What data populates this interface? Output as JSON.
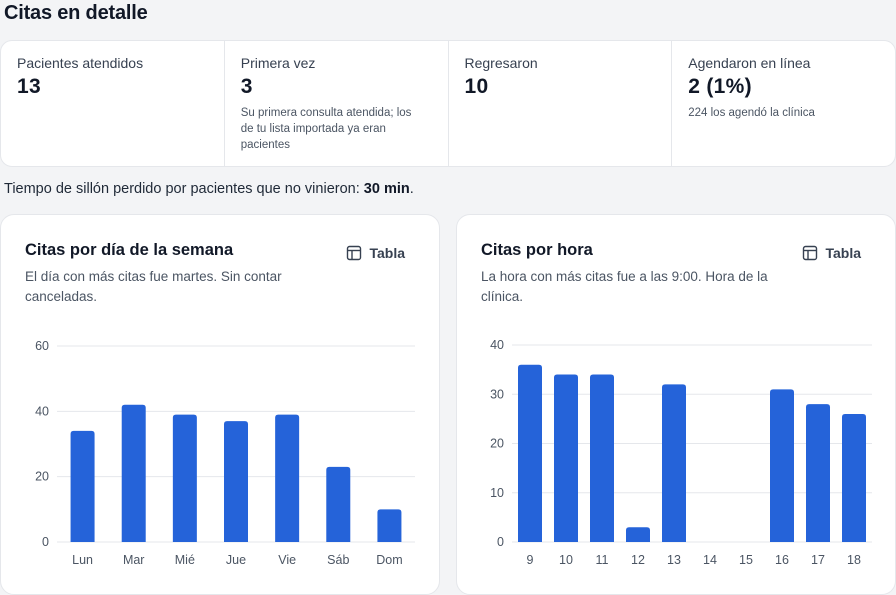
{
  "page_title": "Citas en detalle",
  "stats": [
    {
      "label": "Pacientes atendidos",
      "value": "13",
      "note": ""
    },
    {
      "label": "Primera vez",
      "value": "3",
      "note": "Su primera consulta atendida; los de tu lista importada ya eran pacientes"
    },
    {
      "label": "Regresaron",
      "value": "10",
      "note": ""
    },
    {
      "label": "Agendaron en línea",
      "value": "2 (1%)",
      "note": "224 los agendó la clínica"
    }
  ],
  "chair_time": {
    "text": "Tiempo de sillón perdido por pacientes que no vinieron: ",
    "value": "30 min",
    "suffix": "."
  },
  "colors": {
    "bar": "#2563d9",
    "grid": "#e5e7eb",
    "tick": "#4b5563"
  },
  "table_icon": "table-icon",
  "charts": {
    "weekday": {
      "title": "Citas por día de la semana",
      "subtitle": "El día con más citas fue martes. Sin contar canceladas.",
      "table_label": "Tabla"
    },
    "hour": {
      "title": "Citas por hora",
      "subtitle": "La hora con más citas fue a las 9:00. Hora de la clínica.",
      "table_label": "Tabla"
    }
  },
  "chart_data": [
    {
      "type": "bar",
      "title": "Citas por día de la semana",
      "categories": [
        "Lun",
        "Mar",
        "Mié",
        "Jue",
        "Vie",
        "Sáb",
        "Dom"
      ],
      "values": [
        34,
        42,
        39,
        37,
        39,
        23,
        10
      ],
      "ylim": [
        0,
        60
      ],
      "yticks": [
        0,
        20,
        40,
        60
      ],
      "grid": true
    },
    {
      "type": "bar",
      "title": "Citas por hora",
      "categories": [
        "9",
        "10",
        "11",
        "12",
        "13",
        "14",
        "15",
        "16",
        "17",
        "18"
      ],
      "values": [
        36,
        34,
        34,
        3,
        32,
        0,
        0,
        31,
        28,
        26
      ],
      "ylim": [
        0,
        40
      ],
      "yticks": [
        0,
        10,
        20,
        30,
        40
      ],
      "grid": true
    }
  ]
}
